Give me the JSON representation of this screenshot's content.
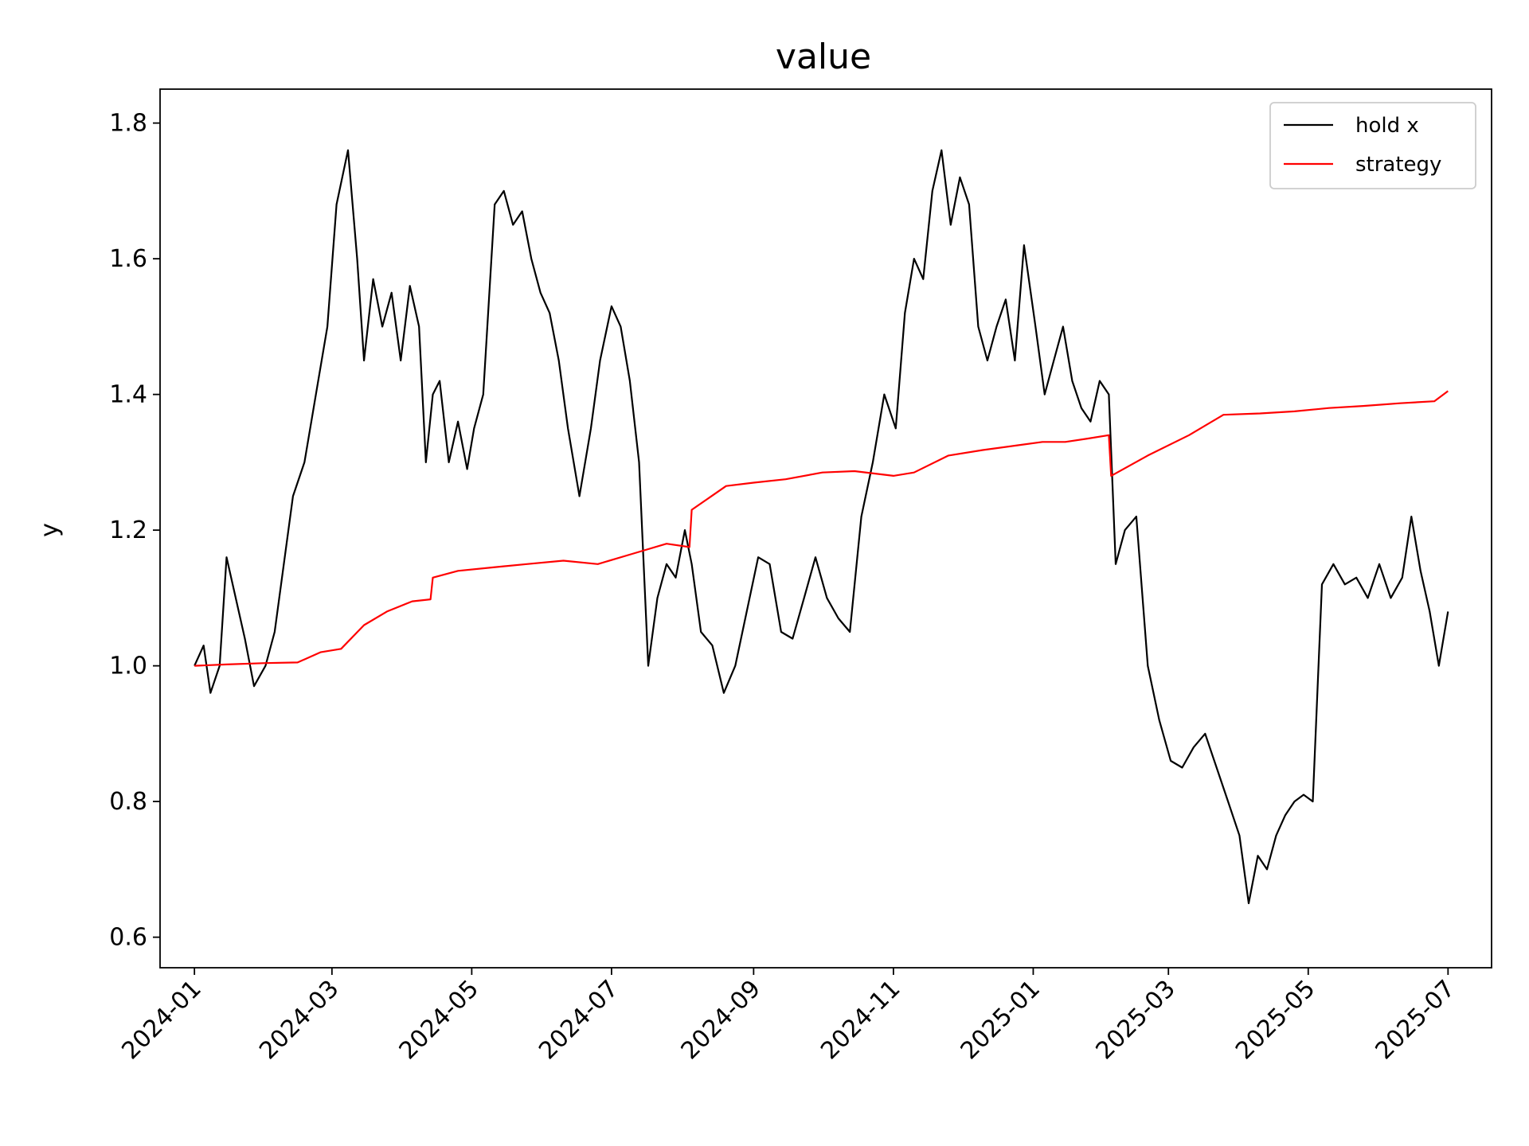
{
  "chart_data": {
    "type": "line",
    "title": "value",
    "xlabel": "",
    "ylabel": "y",
    "x_ticks": [
      "2024-01",
      "2024-03",
      "2024-05",
      "2024-07",
      "2024-09",
      "2024-11",
      "2025-01",
      "2025-03",
      "2025-05",
      "2025-07"
    ],
    "y_ticks": [
      "0.6",
      "0.8",
      "1.0",
      "1.2",
      "1.4",
      "1.6",
      "1.8"
    ],
    "xlim": [
      "2023-12-17",
      "2025-07-20"
    ],
    "ylim": [
      0.555,
      1.85
    ],
    "grid": false,
    "legend_position": "upper right",
    "series": [
      {
        "name": "hold x",
        "color": "#000000",
        "x": [
          "2024-01-01",
          "2024-01-05",
          "2024-01-08",
          "2024-01-12",
          "2024-01-15",
          "2024-01-19",
          "2024-01-23",
          "2024-01-27",
          "2024-02-01",
          "2024-02-05",
          "2024-02-09",
          "2024-02-13",
          "2024-02-18",
          "2024-02-23",
          "2024-02-28",
          "2024-03-03",
          "2024-03-08",
          "2024-03-12",
          "2024-03-15",
          "2024-03-19",
          "2024-03-23",
          "2024-03-27",
          "2024-03-31",
          "2024-04-04",
          "2024-04-08",
          "2024-04-11",
          "2024-04-14",
          "2024-04-17",
          "2024-04-21",
          "2024-04-25",
          "2024-04-29",
          "2024-05-02",
          "2024-05-06",
          "2024-05-11",
          "2024-05-15",
          "2024-05-19",
          "2024-05-23",
          "2024-05-27",
          "2024-05-31",
          "2024-06-04",
          "2024-06-08",
          "2024-06-12",
          "2024-06-17",
          "2024-06-22",
          "2024-06-26",
          "2024-07-01",
          "2024-07-05",
          "2024-07-09",
          "2024-07-13",
          "2024-07-17",
          "2024-07-21",
          "2024-07-25",
          "2024-07-29",
          "2024-08-02",
          "2024-08-05",
          "2024-08-09",
          "2024-08-14",
          "2024-08-19",
          "2024-08-24",
          "2024-08-29",
          "2024-09-03",
          "2024-09-08",
          "2024-09-13",
          "2024-09-18",
          "2024-09-23",
          "2024-09-28",
          "2024-10-03",
          "2024-10-08",
          "2024-10-13",
          "2024-10-18",
          "2024-10-23",
          "2024-10-28",
          "2024-11-02",
          "2024-11-06",
          "2024-11-10",
          "2024-11-14",
          "2024-11-18",
          "2024-11-22",
          "2024-11-26",
          "2024-11-30",
          "2024-12-04",
          "2024-12-08",
          "2024-12-12",
          "2024-12-16",
          "2024-12-20",
          "2024-12-24",
          "2024-12-28",
          "2025-01-02",
          "2025-01-06",
          "2025-01-10",
          "2025-01-14",
          "2025-01-18",
          "2025-01-22",
          "2025-01-26",
          "2025-01-30",
          "2025-02-03",
          "2025-02-06",
          "2025-02-10",
          "2025-02-15",
          "2025-02-20",
          "2025-02-25",
          "2025-03-02",
          "2025-03-07",
          "2025-03-12",
          "2025-03-17",
          "2025-03-22",
          "2025-03-27",
          "2025-04-01",
          "2025-04-05",
          "2025-04-09",
          "2025-04-13",
          "2025-04-17",
          "2025-04-21",
          "2025-04-25",
          "2025-04-29",
          "2025-05-03",
          "2025-05-07",
          "2025-05-12",
          "2025-05-17",
          "2025-05-22",
          "2025-05-27",
          "2025-06-01",
          "2025-06-06",
          "2025-06-11",
          "2025-06-15",
          "2025-06-19",
          "2025-06-23",
          "2025-06-27",
          "2025-07-01"
        ],
        "y": [
          1.0,
          1.03,
          0.96,
          1.0,
          1.16,
          1.1,
          1.04,
          0.97,
          1.0,
          1.05,
          1.15,
          1.25,
          1.3,
          1.4,
          1.5,
          1.68,
          1.76,
          1.6,
          1.45,
          1.57,
          1.5,
          1.55,
          1.45,
          1.56,
          1.5,
          1.3,
          1.4,
          1.42,
          1.3,
          1.36,
          1.29,
          1.35,
          1.4,
          1.68,
          1.7,
          1.65,
          1.67,
          1.6,
          1.55,
          1.52,
          1.45,
          1.35,
          1.25,
          1.35,
          1.45,
          1.53,
          1.5,
          1.42,
          1.3,
          1.0,
          1.1,
          1.15,
          1.13,
          1.2,
          1.15,
          1.05,
          1.03,
          0.96,
          1.0,
          1.08,
          1.16,
          1.15,
          1.05,
          1.04,
          1.1,
          1.16,
          1.1,
          1.07,
          1.05,
          1.22,
          1.3,
          1.4,
          1.35,
          1.52,
          1.6,
          1.57,
          1.7,
          1.76,
          1.65,
          1.72,
          1.68,
          1.5,
          1.45,
          1.5,
          1.54,
          1.45,
          1.62,
          1.5,
          1.4,
          1.45,
          1.5,
          1.42,
          1.38,
          1.36,
          1.42,
          1.4,
          1.15,
          1.2,
          1.22,
          1.0,
          0.92,
          0.86,
          0.85,
          0.88,
          0.9,
          0.85,
          0.8,
          0.75,
          0.65,
          0.72,
          0.7,
          0.75,
          0.78,
          0.8,
          0.81,
          0.8,
          1.12,
          1.15,
          1.12,
          1.13,
          1.1,
          1.15,
          1.1,
          1.13,
          1.22,
          1.14,
          1.08,
          1.0,
          1.08
        ]
      },
      {
        "name": "strategy",
        "color": "#ff0000",
        "x": [
          "2024-01-01",
          "2024-01-15",
          "2024-02-01",
          "2024-02-15",
          "2024-02-25",
          "2024-03-05",
          "2024-03-15",
          "2024-03-25",
          "2024-04-05",
          "2024-04-13",
          "2024-04-14",
          "2024-04-25",
          "2024-05-10",
          "2024-05-25",
          "2024-06-10",
          "2024-06-25",
          "2024-07-10",
          "2024-07-25",
          "2024-08-04",
          "2024-08-05",
          "2024-08-20",
          "2024-09-01",
          "2024-09-15",
          "2024-10-01",
          "2024-10-15",
          "2024-11-01",
          "2024-11-10",
          "2024-11-25",
          "2024-12-10",
          "2024-12-25",
          "2025-01-05",
          "2025-01-15",
          "2025-01-25",
          "2025-02-03",
          "2025-02-04",
          "2025-02-20",
          "2025-03-10",
          "2025-03-25",
          "2025-04-10",
          "2025-04-25",
          "2025-05-10",
          "2025-05-25",
          "2025-06-10",
          "2025-06-25",
          "2025-07-01"
        ],
        "y": [
          1.0,
          1.002,
          1.004,
          1.005,
          1.02,
          1.025,
          1.06,
          1.08,
          1.095,
          1.098,
          1.13,
          1.14,
          1.145,
          1.15,
          1.155,
          1.15,
          1.165,
          1.18,
          1.175,
          1.23,
          1.265,
          1.27,
          1.275,
          1.285,
          1.287,
          1.28,
          1.285,
          1.31,
          1.318,
          1.325,
          1.33,
          1.33,
          1.335,
          1.34,
          1.28,
          1.31,
          1.34,
          1.37,
          1.372,
          1.375,
          1.38,
          1.383,
          1.387,
          1.39,
          1.405
        ]
      }
    ]
  }
}
